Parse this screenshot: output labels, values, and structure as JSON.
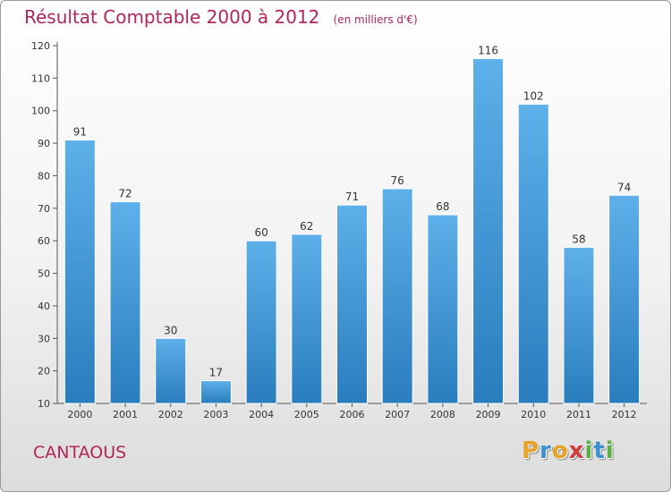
{
  "chart_data": {
    "type": "bar",
    "title": "Résultat Comptable 2000 à 2012",
    "subtitle": "(en milliers d'€)",
    "categories": [
      "2000",
      "2001",
      "2002",
      "2003",
      "2004",
      "2005",
      "2006",
      "2007",
      "2008",
      "2009",
      "2010",
      "2011",
      "2012"
    ],
    "values": [
      91,
      72,
      30,
      17,
      60,
      62,
      71,
      76,
      68,
      116,
      102,
      58,
      74
    ],
    "ylim": [
      10,
      120
    ],
    "yticks": [
      10,
      20,
      30,
      40,
      50,
      60,
      70,
      80,
      90,
      100,
      110,
      120
    ],
    "grid": false,
    "bar_color_top": "#5eb0ea",
    "bar_color_bottom": "#2a7dbd"
  },
  "footer": {
    "commune": "CANTAOUS",
    "brand_letters": [
      "P",
      "r",
      "o",
      "x",
      "i",
      "t",
      "i"
    ],
    "brand_colors": [
      "#e8a227",
      "#3c8fd0",
      "#e8a227",
      "#d23c3c",
      "#5bb043",
      "#3c8fd0",
      "#5bb043"
    ]
  },
  "colors": {
    "title": "#b0265a",
    "axis": "#555555",
    "text": "#333333"
  }
}
